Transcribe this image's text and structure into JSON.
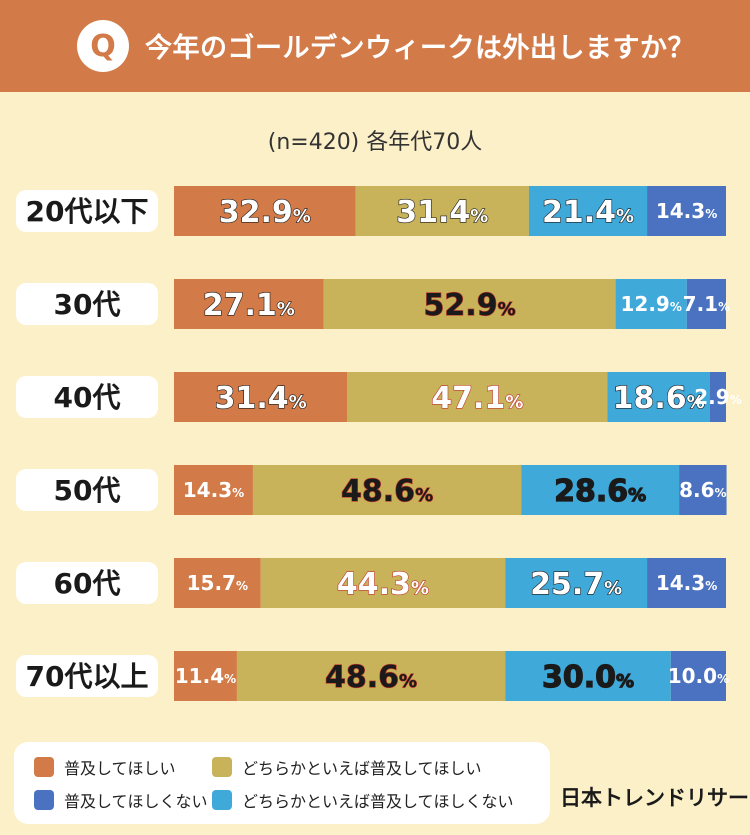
{
  "header": {
    "badge": "Q",
    "question": "今年のゴールデンウィークは外出しますか？"
  },
  "note": "(n=420) 各年代70人",
  "brand": "日本トレンドリサーチ",
  "colors": {
    "header_bg": "#D27A48",
    "background": "#FBF0C8"
  },
  "legend": [
    {
      "label": "普及してほしい",
      "color": "#D27A48"
    },
    {
      "label": "どちらかといえば普及してほしい",
      "color": "#C8B25A"
    },
    {
      "label": "普及してほしくない",
      "color": "#4A72C0"
    },
    {
      "label": "どちらかといえば普及してほしくない",
      "color": "#3FA9DA"
    }
  ],
  "chart_data": {
    "type": "bar",
    "orientation": "horizontal",
    "stacked": true,
    "normalized_percent": true,
    "categories": [
      "20代以下",
      "30代",
      "40代",
      "50代",
      "60代",
      "70代以上"
    ],
    "series": [
      {
        "name": "普及してほしい",
        "color": "#D27A48",
        "values": [
          32.9,
          27.1,
          31.4,
          14.3,
          15.7,
          11.4
        ]
      },
      {
        "name": "どちらかといえば普及してほしい",
        "color": "#C8B25A",
        "values": [
          31.4,
          52.9,
          47.1,
          48.6,
          44.3,
          48.6
        ]
      },
      {
        "name": "どちらかといえば普及してほしくない",
        "color": "#3FA9DA",
        "values": [
          21.4,
          12.9,
          18.6,
          28.6,
          25.7,
          30.0
        ]
      },
      {
        "name": "普及してほしくない",
        "color": "#4A72C0",
        "values": [
          14.3,
          7.1,
          2.9,
          8.6,
          14.3,
          10.0
        ]
      }
    ],
    "value_suffix": "%",
    "xlim": [
      0,
      100
    ],
    "legend_position": "bottom-left"
  }
}
